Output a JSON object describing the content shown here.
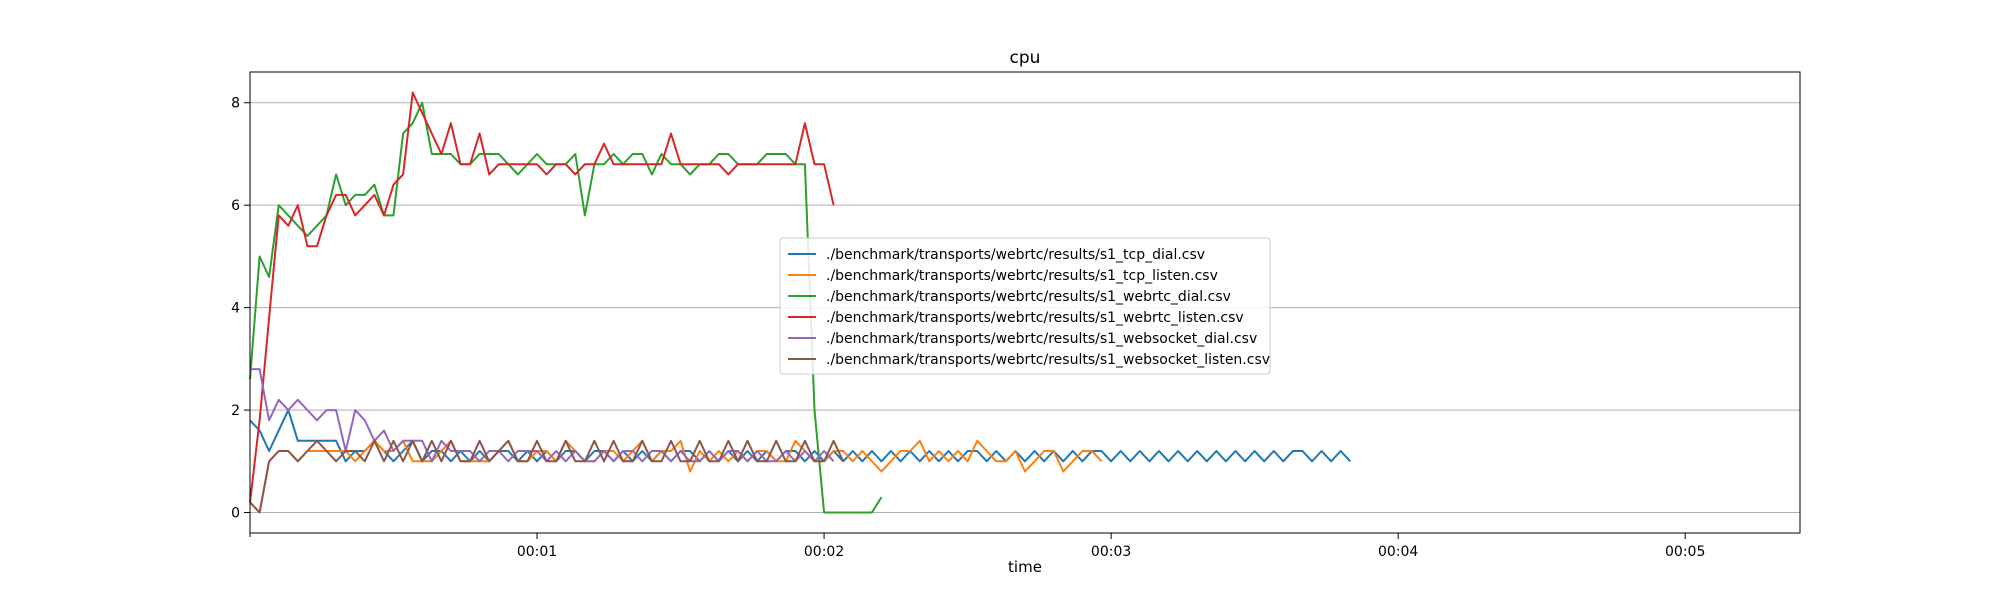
{
  "chart_data": {
    "type": "line",
    "title": "cpu",
    "xlabel": "time",
    "ylabel": "",
    "x_ticks": [
      "00:01",
      "00:02",
      "00:03",
      "00:04",
      "00:05"
    ],
    "x_tick_seconds": [
      10,
      20,
      30,
      40,
      50
    ],
    "xlim_seconds": [
      0,
      54
    ],
    "ylim": [
      -0.4,
      8.6
    ],
    "y_ticks": [
      0,
      2,
      4,
      6,
      8
    ],
    "grid": "horizontal",
    "legend_placement": "center",
    "series": [
      {
        "name": "./benchmark/transports/webrtc/results/s1_tcp_dial.csv",
        "color": "#1f77b4",
        "values": [
          1.8,
          1.6,
          1.2,
          1.6,
          2.0,
          1.4,
          1.4,
          1.4,
          1.4,
          1.4,
          1.0,
          1.2,
          1.2,
          1.4,
          1.2,
          1.0,
          1.2,
          1.4,
          1.0,
          1.2,
          1.2,
          1.0,
          1.2,
          1.0,
          1.2,
          1.0,
          1.2,
          1.2,
          1.0,
          1.2,
          1.0,
          1.2,
          1.0,
          1.2,
          1.2,
          1.0,
          1.2,
          1.2,
          1.0,
          1.2,
          1.0,
          1.2,
          1.0,
          1.2,
          1.0,
          1.2,
          1.2,
          1.0,
          1.2,
          1.0,
          1.2,
          1.0,
          1.2,
          1.0,
          1.2,
          1.0,
          1.2,
          1.2,
          1.0,
          1.2,
          1.0,
          1.2,
          1.0,
          1.2,
          1.0,
          1.2,
          1.0,
          1.2,
          1.0,
          1.2,
          1.0,
          1.2,
          1.0,
          1.2,
          1.0,
          1.2,
          1.2,
          1.0,
          1.2,
          1.0,
          1.2,
          1.0,
          1.2,
          1.0,
          1.2,
          1.0,
          1.2,
          1.0,
          1.2,
          1.2,
          1.0,
          1.2,
          1.0,
          1.2,
          1.0,
          1.2,
          1.0,
          1.2,
          1.0,
          1.2,
          1.0,
          1.2,
          1.0,
          1.2,
          1.0,
          1.2,
          1.0,
          1.2,
          1.0,
          1.2,
          1.2,
          1.0,
          1.2,
          1.0,
          1.2,
          1.0
        ]
      },
      {
        "name": "./benchmark/transports/webrtc/results/s1_tcp_listen.csv",
        "color": "#ff7f0e",
        "values": [
          0.2,
          0.0,
          1.0,
          1.2,
          1.2,
          1.0,
          1.2,
          1.2,
          1.2,
          1.2,
          1.2,
          1.0,
          1.2,
          1.4,
          1.2,
          1.2,
          1.4,
          1.0,
          1.0,
          1.0,
          1.2,
          1.4,
          1.0,
          1.0,
          1.0,
          1.0,
          1.2,
          1.4,
          1.0,
          1.0,
          1.2,
          1.2,
          1.0,
          1.4,
          1.2,
          1.0,
          1.0,
          1.2,
          1.2,
          1.0,
          1.2,
          1.4,
          1.0,
          1.2,
          1.2,
          1.4,
          0.8,
          1.2,
          1.0,
          1.2,
          1.0,
          1.2,
          1.0,
          1.2,
          1.2,
          1.0,
          1.0,
          1.4,
          1.2,
          1.0,
          1.0,
          1.2,
          1.2,
          1.0,
          1.2,
          1.0,
          0.8,
          1.0,
          1.2,
          1.2,
          1.4,
          1.0,
          1.2,
          1.0,
          1.2,
          1.0,
          1.4,
          1.2,
          1.0,
          1.0,
          1.2,
          0.8,
          1.0,
          1.2,
          1.2,
          0.8,
          1.0,
          1.2,
          1.2,
          1.0
        ]
      },
      {
        "name": "./benchmark/transports/webrtc/results/s1_webrtc_dial.csv",
        "color": "#2ca02c",
        "values": [
          2.6,
          5.0,
          4.6,
          6.0,
          5.8,
          5.6,
          5.4,
          5.6,
          5.8,
          6.6,
          6.0,
          6.2,
          6.2,
          6.4,
          5.8,
          5.8,
          7.4,
          7.6,
          8.0,
          7.0,
          7.0,
          7.0,
          6.8,
          6.8,
          7.0,
          7.0,
          7.0,
          6.8,
          6.6,
          6.8,
          7.0,
          6.8,
          6.8,
          6.8,
          7.0,
          5.8,
          6.8,
          6.8,
          7.0,
          6.8,
          7.0,
          7.0,
          6.6,
          7.0,
          6.8,
          6.8,
          6.6,
          6.8,
          6.8,
          7.0,
          7.0,
          6.8,
          6.8,
          6.8,
          7.0,
          7.0,
          7.0,
          6.8,
          6.8,
          2.0,
          0.0,
          0.0,
          0.0,
          0.0,
          0.0,
          0.0,
          0.3
        ]
      },
      {
        "name": "./benchmark/transports/webrtc/results/s1_webrtc_listen.csv",
        "color": "#d62728",
        "values": [
          0.2,
          1.8,
          3.8,
          5.8,
          5.6,
          6.0,
          5.2,
          5.2,
          5.8,
          6.2,
          6.2,
          5.8,
          6.0,
          6.2,
          5.8,
          6.4,
          6.6,
          8.2,
          7.8,
          7.4,
          7.0,
          7.6,
          6.8,
          6.8,
          7.4,
          6.6,
          6.8,
          6.8,
          6.8,
          6.8,
          6.8,
          6.6,
          6.8,
          6.8,
          6.6,
          6.8,
          6.8,
          7.2,
          6.8,
          6.8,
          6.8,
          6.8,
          6.8,
          6.8,
          7.4,
          6.8,
          6.8,
          6.8,
          6.8,
          6.8,
          6.6,
          6.8,
          6.8,
          6.8,
          6.8,
          6.8,
          6.8,
          6.8,
          7.6,
          6.8,
          6.8,
          6.0
        ]
      },
      {
        "name": "./benchmark/transports/webrtc/results/s1_websocket_dial.csv",
        "color": "#9467bd",
        "values": [
          2.8,
          2.8,
          1.8,
          2.2,
          2.0,
          2.2,
          2.0,
          1.8,
          2.0,
          2.0,
          1.2,
          2.0,
          1.8,
          1.4,
          1.6,
          1.2,
          1.4,
          1.4,
          1.4,
          1.0,
          1.4,
          1.2,
          1.2,
          1.2,
          1.0,
          1.2,
          1.2,
          1.0,
          1.2,
          1.2,
          1.2,
          1.0,
          1.2,
          1.0,
          1.2,
          1.0,
          1.0,
          1.2,
          1.0,
          1.2,
          1.2,
          1.0,
          1.2,
          1.2,
          1.0,
          1.2,
          1.0,
          1.0,
          1.2,
          1.0,
          1.2,
          1.2,
          1.0,
          1.2,
          1.0,
          1.0,
          1.2,
          1.0,
          1.2,
          1.0,
          1.2,
          1.0
        ]
      },
      {
        "name": "./benchmark/transports/webrtc/results/s1_websocket_listen.csv",
        "color": "#8c564b",
        "values": [
          0.2,
          0.0,
          1.0,
          1.2,
          1.2,
          1.0,
          1.2,
          1.4,
          1.2,
          1.0,
          1.2,
          1.2,
          1.0,
          1.4,
          1.0,
          1.4,
          1.0,
          1.4,
          1.0,
          1.4,
          1.0,
          1.4,
          1.0,
          1.0,
          1.4,
          1.0,
          1.2,
          1.4,
          1.0,
          1.0,
          1.4,
          1.0,
          1.0,
          1.4,
          1.0,
          1.0,
          1.4,
          1.0,
          1.4,
          1.0,
          1.0,
          1.4,
          1.0,
          1.0,
          1.4,
          1.0,
          1.0,
          1.4,
          1.0,
          1.0,
          1.4,
          1.0,
          1.4,
          1.0,
          1.0,
          1.4,
          1.0,
          1.0,
          1.4,
          1.0,
          1.0,
          1.4,
          1.0
        ]
      }
    ]
  }
}
